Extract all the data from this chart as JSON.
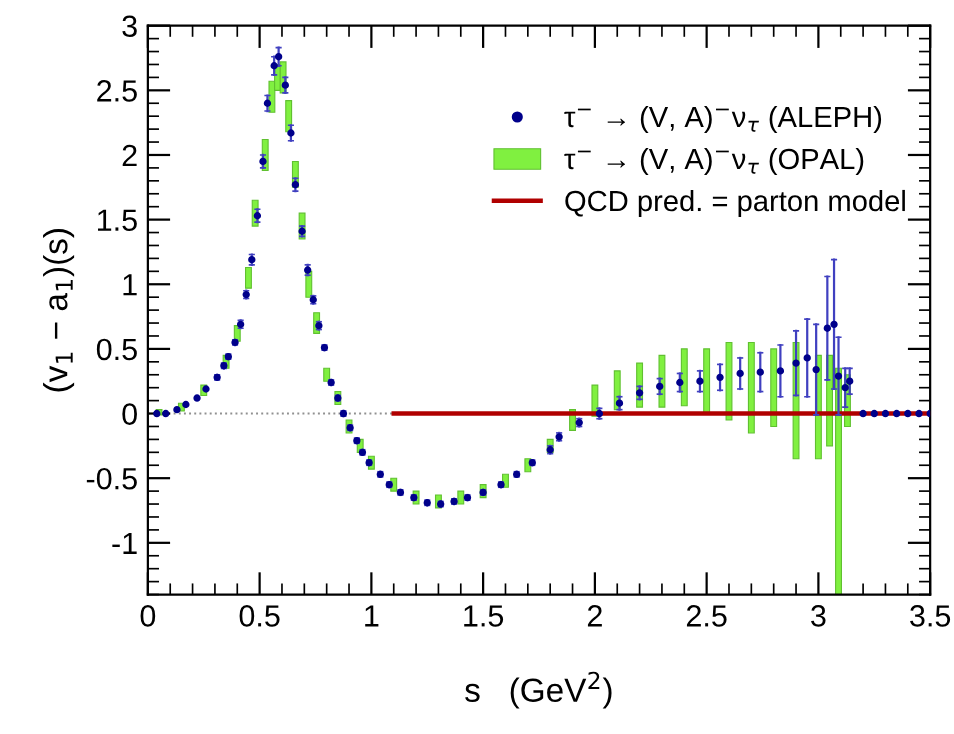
{
  "chart_data": {
    "type": "scatter",
    "xlabel": "s   (GeV$^{2}$)",
    "ylabel": "(v$_{1}$ − a$_{1}$)(s)",
    "xlim": [
      0,
      3.5
    ],
    "ylim": [
      -1.4,
      3
    ],
    "xticks": [
      0,
      0.5,
      1,
      1.5,
      2,
      2.5,
      3,
      3.5
    ],
    "yticks": [
      -1,
      -0.5,
      0,
      0.5,
      1,
      1.5,
      2,
      2.5,
      3
    ],
    "legend": "top right",
    "ref_lines": [
      {
        "axis": "y",
        "value": 0,
        "color": "#909090",
        "line_style": "dotted"
      }
    ],
    "series": [
      {
        "name": "τ$^{−}$ → (V, A)$^{−}$ν$_{τ}$ (ALEPH)",
        "marker": "circle",
        "color": "#00008b",
        "x": [
          0.04,
          0.08,
          0.13,
          0.17,
          0.22,
          0.26,
          0.31,
          0.34,
          0.36,
          0.39,
          0.415,
          0.44,
          0.465,
          0.49,
          0.515,
          0.535,
          0.565,
          0.585,
          0.615,
          0.64,
          0.66,
          0.69,
          0.715,
          0.74,
          0.765,
          0.79,
          0.82,
          0.85,
          0.875,
          0.905,
          0.935,
          0.96,
          0.99,
          1.04,
          1.08,
          1.13,
          1.19,
          1.25,
          1.31,
          1.37,
          1.43,
          1.5,
          1.58,
          1.65,
          1.72,
          1.8,
          1.84,
          1.93,
          2.02,
          2.11,
          2.2,
          2.29,
          2.38,
          2.47,
          2.56,
          2.65,
          2.74,
          2.83,
          2.9,
          2.95,
          2.99,
          3.04,
          3.07,
          3.09,
          3.12,
          3.14,
          3.2,
          3.25,
          3.3,
          3.35,
          3.4,
          3.45,
          3.5
        ],
        "values": [
          0,
          0,
          0.03,
          0.07,
          0.12,
          0.19,
          0.28,
          0.37,
          0.44,
          0.55,
          0.69,
          0.92,
          1.19,
          1.53,
          1.95,
          2.4,
          2.69,
          2.76,
          2.54,
          2.17,
          1.77,
          1.41,
          1.11,
          0.88,
          0.68,
          0.51,
          0.24,
          0.12,
          0,
          -0.11,
          -0.21,
          -0.3,
          -0.38,
          -0.47,
          -0.55,
          -0.61,
          -0.65,
          -0.69,
          -0.7,
          -0.68,
          -0.65,
          -0.61,
          -0.55,
          -0.47,
          -0.38,
          -0.28,
          -0.18,
          -0.07,
          0,
          0.08,
          0.16,
          0.21,
          0.24,
          0.25,
          0.28,
          0.31,
          0.32,
          0.33,
          0.39,
          0.43,
          0.34,
          0.66,
          0.69,
          0.29,
          0.2,
          0.25,
          0,
          0,
          0,
          0,
          0,
          0,
          0
        ],
        "errors": [
          null,
          null,
          null,
          null,
          null,
          null,
          0.02,
          0.02,
          0.02,
          0.02,
          0.03,
          0.03,
          0.04,
          0.05,
          0.05,
          0.06,
          0.07,
          0.07,
          0.06,
          0.06,
          0.05,
          0.04,
          0.04,
          0.03,
          0.03,
          0.02,
          0.02,
          0.02,
          0.02,
          0.02,
          0.02,
          0.02,
          0.02,
          0.02,
          0.02,
          0.02,
          0.02,
          0.02,
          0.02,
          0.02,
          0.02,
          0.02,
          0.02,
          0.02,
          0.02,
          0.03,
          0.03,
          0.03,
          0.04,
          0.05,
          0.05,
          0.06,
          0.07,
          0.08,
          0.1,
          0.12,
          0.15,
          0.2,
          0.25,
          0.3,
          0.35,
          0.4,
          0.5,
          0.3,
          0.15,
          0.1,
          null,
          null,
          null,
          null,
          null,
          null,
          null
        ]
      },
      {
        "name": "τ$^{−}$ → (V, A)$^{−}$ν$_{τ}$ (OPAL)",
        "type": "bar",
        "color": "#80f040",
        "x": [
          0.05,
          0.15,
          0.25,
          0.35,
          0.4,
          0.45,
          0.48,
          0.525,
          0.555,
          0.58,
          0.605,
          0.63,
          0.66,
          0.69,
          0.72,
          0.755,
          0.8,
          0.85,
          0.9,
          0.95,
          1.0,
          1.1,
          1.2,
          1.3,
          1.4,
          1.5,
          1.6,
          1.7,
          1.8,
          1.9,
          2.0,
          2.1,
          2.2,
          2.3,
          2.4,
          2.5,
          2.6,
          2.7,
          2.8,
          2.9,
          3.0,
          3.05,
          3.09,
          3.13
        ],
        "base": [
          -0.01,
          0.02,
          0.14,
          0.35,
          0.56,
          0.97,
          1.45,
          1.88,
          2.33,
          2.5,
          2.48,
          2.18,
          1.75,
          1.35,
          0.9,
          0.62,
          0.25,
          0.07,
          -0.15,
          -0.3,
          -0.43,
          -0.6,
          -0.7,
          -0.73,
          -0.7,
          -0.65,
          -0.57,
          -0.45,
          -0.3,
          -0.13,
          -0.02,
          0.03,
          0.05,
          0.05,
          0.06,
          0,
          -0.05,
          -0.15,
          -0.1,
          -0.35,
          -0.35,
          -0.25,
          -1.4,
          -0.1
        ],
        "values": [
          0.04,
          0.06,
          0.08,
          0.1,
          0.12,
          0.16,
          0.2,
          0.24,
          0.24,
          0.2,
          0.24,
          0.24,
          0.2,
          0.2,
          0.2,
          0.16,
          0.1,
          0.1,
          0.1,
          0.1,
          0.1,
          0.1,
          0.1,
          0.1,
          0.1,
          0.1,
          0.1,
          0.1,
          0.1,
          0.16,
          0.24,
          0.3,
          0.34,
          0.4,
          0.44,
          0.5,
          0.6,
          0.7,
          0.6,
          0.9,
          0.8,
          0.7,
          1.75,
          0.4
        ]
      },
      {
        "name": "QCD pred. = parton model",
        "type": "line",
        "color": "#b00000",
        "line_style": "solid",
        "x": [
          1.1,
          3.5
        ],
        "values": [
          0,
          0
        ]
      }
    ]
  }
}
